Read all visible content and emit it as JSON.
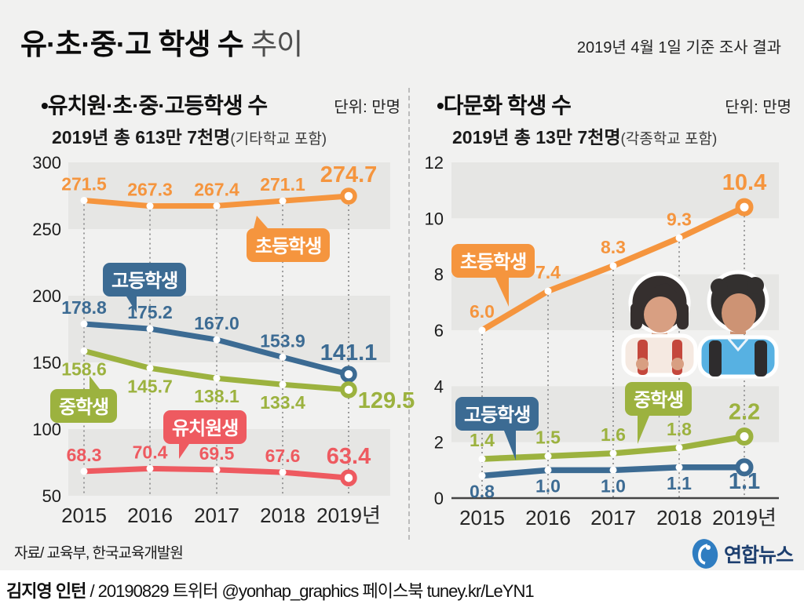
{
  "header": {
    "title_main": "유·초·중·고 학생 수",
    "title_suffix": " 추이",
    "survey_note": "2019년 4월 1일 기준 조사 결과"
  },
  "chart_data": [
    {
      "type": "line",
      "title": "•유치원·초·중·고등학생 수",
      "unit_label": "단위: 만명",
      "subtitle": "2019년 총 613만 7천명",
      "subtitle_note": "(기타학교 포함)",
      "x": [
        "2015",
        "2016",
        "2017",
        "2018",
        "2019년"
      ],
      "ylim": [
        50,
        300
      ],
      "yticks": [
        300,
        250,
        200,
        150,
        100,
        50
      ],
      "band_pairs": [
        [
          250,
          300
        ],
        [
          150,
          200
        ],
        [
          50,
          100
        ]
      ],
      "grid": "alternating-bands",
      "legend_position": "inline-bubbles",
      "series": [
        {
          "name": "초등학생",
          "color": "#f5953e",
          "label_side": "above",
          "values": [
            271.5,
            267.3,
            267.4,
            271.1,
            274.7
          ],
          "labels": [
            "271.5",
            "267.3",
            "267.4",
            "271.1",
            "274.7"
          ]
        },
        {
          "name": "고등학생",
          "color": "#3c6b93",
          "label_side": "above",
          "values": [
            178.8,
            175.2,
            167.0,
            153.9,
            141.1
          ],
          "labels": [
            "178.8",
            "175.2",
            "167.0",
            "153.9",
            "141.1"
          ]
        },
        {
          "name": "중학생",
          "color": "#9cb23f",
          "label_side": "below",
          "values": [
            158.6,
            145.7,
            138.1,
            133.4,
            129.5
          ],
          "labels": [
            "158.6",
            "145.7",
            "138.1",
            "133.4",
            "129.5"
          ]
        },
        {
          "name": "유치원생",
          "color": "#ee5a60",
          "label_side": "above",
          "values": [
            68.3,
            70.4,
            69.5,
            67.6,
            63.4
          ],
          "labels": [
            "68.3",
            "70.4",
            "69.5",
            "67.6",
            "63.4"
          ]
        }
      ]
    },
    {
      "type": "line",
      "title": "•다문화 학생 수",
      "unit_label": "단위: 만명",
      "subtitle": "2019년 총 13만 7천명",
      "subtitle_note": "(각종학교 포함)",
      "x": [
        "2015",
        "2016",
        "2017",
        "2018",
        "2019년"
      ],
      "ylim": [
        0,
        12
      ],
      "yticks": [
        12,
        10,
        8,
        6,
        4,
        2,
        0
      ],
      "band_pairs": [
        [
          10,
          12
        ],
        [
          6,
          8
        ],
        [
          2,
          4
        ]
      ],
      "grid": "alternating-bands",
      "legend_position": "inline-bubbles",
      "series": [
        {
          "name": "초등학생",
          "color": "#f5953e",
          "label_side": "above",
          "values": [
            6.0,
            7.4,
            8.3,
            9.3,
            10.4
          ],
          "labels": [
            "6.0",
            "7.4",
            "8.3",
            "9.3",
            "10.4"
          ]
        },
        {
          "name": "중학생",
          "color": "#9cb23f",
          "label_side": "above",
          "values": [
            1.4,
            1.5,
            1.6,
            1.8,
            2.2
          ],
          "labels": [
            "1.4",
            "1.5",
            "1.6",
            "1.8",
            "2.2"
          ]
        },
        {
          "name": "고등학생",
          "color": "#3c6b93",
          "label_side": "below",
          "values": [
            0.8,
            1.0,
            1.0,
            1.1,
            1.1
          ],
          "labels": [
            "0.8",
            "1.0",
            "1.0",
            "1.1",
            "1.1"
          ]
        }
      ]
    }
  ],
  "footer": {
    "source": "자료/ 교육부, 한국교육개발원",
    "logo_text": "연합뉴스",
    "logo_color": "#2f7dc1",
    "logo_text_color": "#1d3f6f",
    "credit_name": "김지영 인턴",
    "credit_rest": " / 20190829 트위터 @yonhap_graphics  페이스북 tuney.kr/LeYN1"
  }
}
